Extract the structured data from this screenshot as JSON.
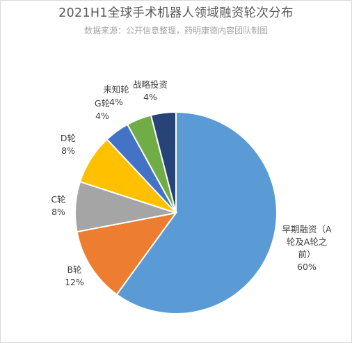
{
  "chart_data": {
    "type": "pie",
    "title": "2021H1全球手术机器人领域融资轮次分布",
    "subtitle": "数据来源：公开信息整理，药明康德内容团队制图",
    "slices": [
      {
        "name": "早期融资（A轮及A轮之前）",
        "value": 60,
        "label_lines": [
          "早期融资（A",
          "轮及A轮之",
          "前）",
          "60%"
        ],
        "color": "#5b9bd5"
      },
      {
        "name": "B轮",
        "value": 12,
        "label_lines": [
          "B轮",
          "12%"
        ],
        "color": "#ed7d31"
      },
      {
        "name": "C轮",
        "value": 8,
        "label_lines": [
          "C轮",
          "8%"
        ],
        "color": "#a5a5a5"
      },
      {
        "name": "D轮",
        "value": 8,
        "label_lines": [
          "D轮",
          "8%"
        ],
        "color": "#ffc000"
      },
      {
        "name": "G轮",
        "value": 4,
        "label_lines": [
          "G轮",
          "4%"
        ],
        "color": "#4472c4"
      },
      {
        "name": "未知轮",
        "value": 4,
        "label_lines": [
          "未知轮",
          "4%"
        ],
        "color": "#70ad47"
      },
      {
        "name": "战略投资",
        "value": 4,
        "label_lines": [
          "战略投资",
          "4%"
        ],
        "color": "#264478"
      }
    ],
    "start_angle": "12 o'clock",
    "direction": "clockwise",
    "legend": "none"
  }
}
